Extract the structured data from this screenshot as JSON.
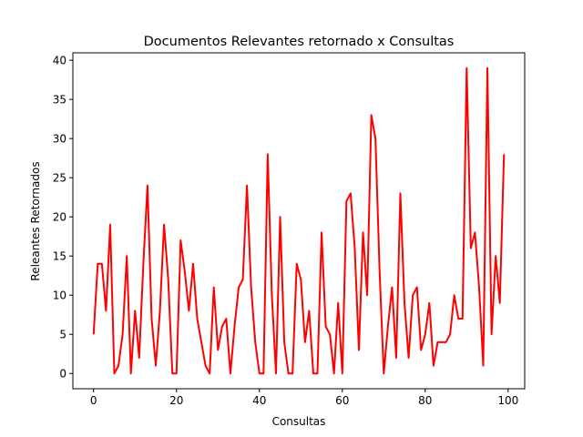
{
  "chart_data": {
    "type": "line",
    "title": "Documentos Relevantes retornado x Consultas",
    "xlabel": "Consultas",
    "ylabel": "Releantes Retornados",
    "xlim": [
      -5,
      104
    ],
    "ylim": [
      -1.95,
      40.95
    ],
    "xticks": [
      0,
      20,
      40,
      60,
      80,
      100
    ],
    "yticks": [
      0,
      5,
      10,
      15,
      20,
      25,
      30,
      35,
      40
    ],
    "grid": false,
    "line_color": "#ff0000",
    "series": [
      {
        "x": [
          0,
          1,
          2,
          3,
          4,
          5,
          6,
          7,
          8,
          9,
          10,
          11,
          12,
          13,
          14,
          15,
          16,
          17,
          18,
          19,
          20,
          21,
          22,
          23,
          24,
          25,
          26,
          27,
          28,
          29,
          30,
          31,
          32,
          33,
          34,
          35,
          36,
          37,
          38,
          39,
          40,
          41,
          42,
          43,
          44,
          45,
          46,
          47,
          48,
          49,
          50,
          51,
          52,
          53,
          54,
          55,
          56,
          57,
          58,
          59,
          60,
          61,
          62,
          63,
          64,
          65,
          66,
          67,
          68,
          69,
          70,
          71,
          72,
          73,
          74,
          75,
          76,
          77,
          78,
          79,
          80,
          81,
          82,
          83,
          84,
          85,
          86,
          87,
          88,
          89,
          90,
          91,
          92,
          93,
          94,
          95,
          96,
          97,
          98,
          99
        ],
        "values": [
          5,
          14,
          14,
          8,
          19,
          0,
          1,
          5,
          15,
          0,
          8,
          2,
          14,
          24,
          7,
          1,
          8,
          19,
          12,
          0,
          0,
          17,
          13,
          8,
          14,
          7,
          4,
          1,
          0,
          11,
          3,
          6,
          7,
          0,
          6,
          11,
          12,
          24,
          11,
          4,
          0,
          0,
          28,
          10,
          0,
          20,
          4,
          0,
          0,
          14,
          12,
          4,
          8,
          0,
          0,
          18,
          6,
          5,
          0,
          9,
          0,
          22,
          23,
          16,
          3,
          18,
          10,
          33,
          30,
          13,
          0,
          6,
          11,
          2,
          23,
          9,
          2,
          10,
          11,
          3,
          5,
          9,
          1,
          4,
          4,
          4,
          5,
          10,
          7,
          7,
          39,
          16,
          18,
          11,
          1,
          39,
          5,
          15,
          9,
          28
        ]
      }
    ]
  }
}
